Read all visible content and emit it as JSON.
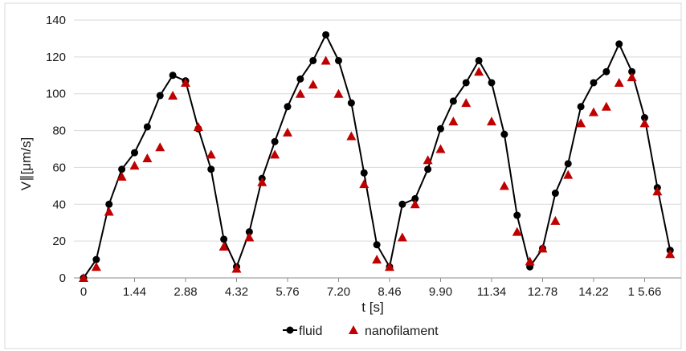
{
  "chart_data": {
    "type": "line",
    "title": "",
    "xlabel": "t [s]",
    "ylabel": "V∥[μm/s]",
    "x_tick_labels": [
      "0",
      "1.44",
      "2.88",
      "4.32",
      "5.76",
      "7.20",
      "8.46",
      "9.90",
      "11.34",
      "12.78",
      "14.22",
      "1 5.66"
    ],
    "xlim": [
      0,
      16.6
    ],
    "ylim": [
      0,
      140
    ],
    "y_ticks": [
      0,
      20,
      40,
      60,
      80,
      100,
      120,
      140
    ],
    "grid": "horizontal",
    "legend_position": "bottom-center",
    "series": [
      {
        "name": "fluid",
        "style": "line-with-circle-markers",
        "color": "#000000",
        "x": [
          0,
          0.36,
          0.72,
          1.08,
          1.44,
          1.8,
          2.16,
          2.52,
          2.88,
          3.24,
          3.6,
          3.96,
          4.32,
          4.68,
          5.04,
          5.4,
          5.76,
          6.12,
          6.48,
          6.84,
          7.2,
          7.56,
          7.92,
          8.28,
          8.64,
          9.0,
          9.36,
          9.72,
          10.08,
          10.44,
          10.8,
          11.16,
          11.52,
          11.88,
          12.24,
          12.6,
          12.96,
          13.32,
          13.68,
          14.04,
          14.4,
          14.76,
          15.12,
          15.48,
          15.84,
          16.2,
          16.56
        ],
        "y": [
          0,
          10,
          40,
          59,
          68,
          82,
          99,
          110,
          107,
          81,
          59,
          21,
          6,
          25,
          54,
          74,
          93,
          108,
          118,
          132,
          118,
          95,
          57,
          18,
          6,
          40,
          43,
          59,
          81,
          96,
          106,
          118,
          106,
          78,
          34,
          6,
          16,
          46,
          62,
          93,
          106,
          112,
          127,
          112,
          87,
          49,
          15
        ]
      },
      {
        "name": "nanofilament",
        "style": "triangle-markers",
        "color": "#c00000",
        "x": [
          0,
          0.36,
          0.72,
          1.08,
          1.44,
          1.8,
          2.16,
          2.52,
          2.88,
          3.24,
          3.6,
          3.96,
          4.32,
          4.68,
          5.04,
          5.4,
          5.76,
          6.12,
          6.48,
          6.84,
          7.2,
          7.56,
          7.92,
          8.28,
          8.64,
          9.0,
          9.36,
          9.72,
          10.08,
          10.44,
          10.8,
          11.16,
          11.52,
          11.88,
          12.24,
          12.6,
          12.96,
          13.32,
          13.68,
          14.04,
          14.4,
          14.76,
          15.12,
          15.48,
          15.84,
          16.2,
          16.56
        ],
        "y": [
          0,
          6,
          36,
          55,
          61,
          65,
          71,
          99,
          106,
          82,
          67,
          17,
          5,
          22,
          52,
          67,
          79,
          100,
          105,
          118,
          100,
          77,
          51,
          10,
          6,
          22,
          40,
          64,
          70,
          85,
          95,
          112,
          85,
          50,
          25,
          9,
          16,
          31,
          56,
          84,
          90,
          93,
          106,
          109,
          84,
          47,
          13
        ]
      }
    ]
  }
}
